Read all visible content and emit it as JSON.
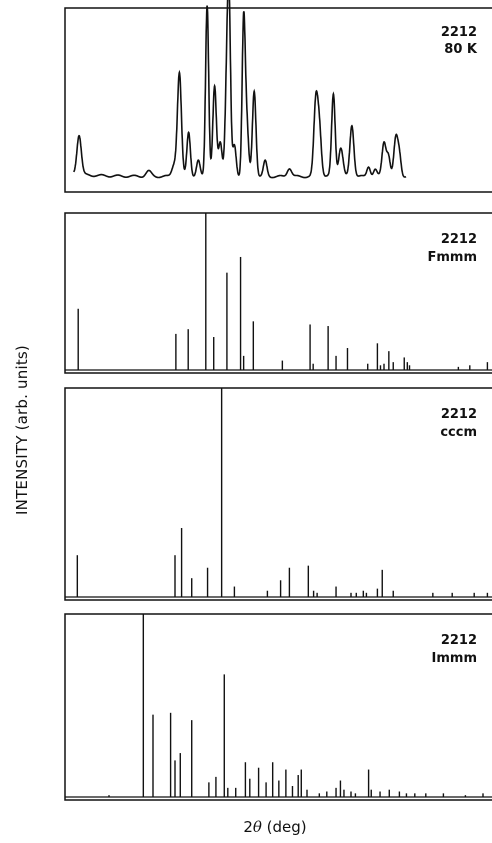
{
  "axes": {
    "ylabel": "INTENSITY (arb. units)",
    "xlabel_prefix": "2",
    "xlabel_symbol": "θ",
    "xlabel_suffix": " (deg)"
  },
  "chart_data": [
    {
      "type": "line",
      "label_line1": "2212",
      "label_line2": "80 K",
      "xlim": [
        0,
        100
      ],
      "ylim": [
        0,
        1
      ],
      "peaks": [
        {
          "x": 3.2,
          "h": 0.23,
          "w": 0.5
        },
        {
          "x": 19.0,
          "h": 0.03,
          "w": 0.6
        },
        {
          "x": 24.8,
          "h": 0.07,
          "w": 0.5
        },
        {
          "x": 26.0,
          "h": 0.6,
          "w": 0.45
        },
        {
          "x": 28.1,
          "h": 0.26,
          "w": 0.4
        },
        {
          "x": 30.3,
          "h": 0.09,
          "w": 0.4
        },
        {
          "x": 32.3,
          "h": 1.0,
          "w": 0.35
        },
        {
          "x": 34.0,
          "h": 0.52,
          "w": 0.4
        },
        {
          "x": 35.3,
          "h": 0.2,
          "w": 0.4
        },
        {
          "x": 36.8,
          "h": 0.55,
          "w": 0.4
        },
        {
          "x": 37.3,
          "h": 0.85,
          "w": 0.35
        },
        {
          "x": 38.5,
          "h": 0.18,
          "w": 0.4
        },
        {
          "x": 40.6,
          "h": 0.89,
          "w": 0.35
        },
        {
          "x": 41.3,
          "h": 0.3,
          "w": 0.4
        },
        {
          "x": 43.0,
          "h": 0.5,
          "w": 0.4
        },
        {
          "x": 45.5,
          "h": 0.09,
          "w": 0.4
        },
        {
          "x": 51.0,
          "h": 0.05,
          "w": 0.5
        },
        {
          "x": 57.0,
          "h": 0.42,
          "w": 0.45
        },
        {
          "x": 57.8,
          "h": 0.28,
          "w": 0.45
        },
        {
          "x": 61.0,
          "h": 0.48,
          "w": 0.4
        },
        {
          "x": 62.5,
          "h": 0.12,
          "w": 0.4
        },
        {
          "x": 63.0,
          "h": 0.08,
          "w": 0.4
        },
        {
          "x": 65.2,
          "h": 0.3,
          "w": 0.45
        },
        {
          "x": 69.0,
          "h": 0.06,
          "w": 0.4
        },
        {
          "x": 70.5,
          "h": 0.04,
          "w": 0.4
        },
        {
          "x": 72.5,
          "h": 0.2,
          "w": 0.45
        },
        {
          "x": 73.5,
          "h": 0.12,
          "w": 0.4
        },
        {
          "x": 75.2,
          "h": 0.22,
          "w": 0.45
        },
        {
          "x": 76.0,
          "h": 0.12,
          "w": 0.4
        }
      ],
      "x_end": 77.5
    },
    {
      "type": "bar",
      "label_line1": "2212",
      "label_line2": "Fmmm",
      "xlim": [
        0,
        100
      ],
      "ylim": [
        0,
        1
      ],
      "sticks": [
        [
          3.0,
          0.39
        ],
        [
          25.2,
          0.23
        ],
        [
          28.0,
          0.26
        ],
        [
          32.0,
          1.0
        ],
        [
          33.8,
          0.21
        ],
        [
          36.8,
          0.62
        ],
        [
          39.9,
          0.72
        ],
        [
          40.6,
          0.09
        ],
        [
          42.8,
          0.31
        ],
        [
          49.4,
          0.06
        ],
        [
          55.7,
          0.29
        ],
        [
          56.4,
          0.04
        ],
        [
          59.8,
          0.28
        ],
        [
          61.6,
          0.09
        ],
        [
          64.2,
          0.14
        ],
        [
          68.8,
          0.04
        ],
        [
          71.0,
          0.17
        ],
        [
          71.7,
          0.03
        ],
        [
          72.5,
          0.04
        ],
        [
          73.6,
          0.12
        ],
        [
          74.6,
          0.05
        ],
        [
          77.1,
          0.08
        ],
        [
          77.8,
          0.05
        ],
        [
          78.3,
          0.03
        ],
        [
          89.4,
          0.02
        ],
        [
          92.0,
          0.03
        ],
        [
          96.0,
          0.05
        ]
      ]
    },
    {
      "type": "bar",
      "label_line1": "2212",
      "label_line2": "cccm",
      "xlim": [
        0,
        100
      ],
      "ylim": [
        0,
        1
      ],
      "sticks": [
        [
          2.8,
          0.2
        ],
        [
          25.0,
          0.2
        ],
        [
          26.5,
          0.33
        ],
        [
          28.8,
          0.09
        ],
        [
          32.4,
          0.14
        ],
        [
          35.6,
          1.0
        ],
        [
          38.5,
          0.05
        ],
        [
          46.0,
          0.03
        ],
        [
          49.0,
          0.08
        ],
        [
          51.0,
          0.14
        ],
        [
          55.3,
          0.15
        ],
        [
          56.5,
          0.03
        ],
        [
          57.3,
          0.02
        ],
        [
          61.6,
          0.05
        ],
        [
          65.0,
          0.02
        ],
        [
          66.2,
          0.02
        ],
        [
          67.8,
          0.03
        ],
        [
          68.5,
          0.02
        ],
        [
          71.0,
          0.04
        ],
        [
          72.1,
          0.13
        ],
        [
          74.6,
          0.03
        ],
        [
          83.6,
          0.02
        ],
        [
          88.0,
          0.02
        ],
        [
          93.0,
          0.02
        ],
        [
          96.0,
          0.02
        ],
        [
          98.0,
          0.02
        ]
      ]
    },
    {
      "type": "bar",
      "label_line1": "2212",
      "label_line2": "Immm",
      "xlim": [
        0,
        100
      ],
      "ylim": [
        0,
        1
      ],
      "sticks": [
        [
          10.0,
          0.01
        ],
        [
          17.8,
          1.0
        ],
        [
          20.0,
          0.45
        ],
        [
          24.0,
          0.46
        ],
        [
          25.0,
          0.2
        ],
        [
          26.2,
          0.24
        ],
        [
          28.8,
          0.42
        ],
        [
          32.7,
          0.08
        ],
        [
          34.3,
          0.11
        ],
        [
          36.2,
          0.67
        ],
        [
          37.0,
          0.05
        ],
        [
          38.8,
          0.05
        ],
        [
          41.0,
          0.19
        ],
        [
          42.0,
          0.1
        ],
        [
          44.0,
          0.16
        ],
        [
          45.7,
          0.08
        ],
        [
          47.2,
          0.19
        ],
        [
          48.6,
          0.09
        ],
        [
          50.2,
          0.15
        ],
        [
          51.7,
          0.06
        ],
        [
          53.0,
          0.12
        ],
        [
          53.7,
          0.15
        ],
        [
          55.0,
          0.04
        ],
        [
          57.8,
          0.02
        ],
        [
          59.5,
          0.03
        ],
        [
          61.6,
          0.05
        ],
        [
          62.6,
          0.09
        ],
        [
          63.4,
          0.04
        ],
        [
          65.0,
          0.03
        ],
        [
          66.0,
          0.02
        ],
        [
          69.0,
          0.15
        ],
        [
          69.6,
          0.04
        ],
        [
          71.6,
          0.03
        ],
        [
          73.7,
          0.04
        ],
        [
          76.0,
          0.03
        ],
        [
          77.6,
          0.02
        ],
        [
          79.5,
          0.02
        ],
        [
          82.0,
          0.02
        ],
        [
          86.0,
          0.02
        ],
        [
          91.0,
          0.01
        ],
        [
          95.0,
          0.02
        ]
      ]
    }
  ]
}
